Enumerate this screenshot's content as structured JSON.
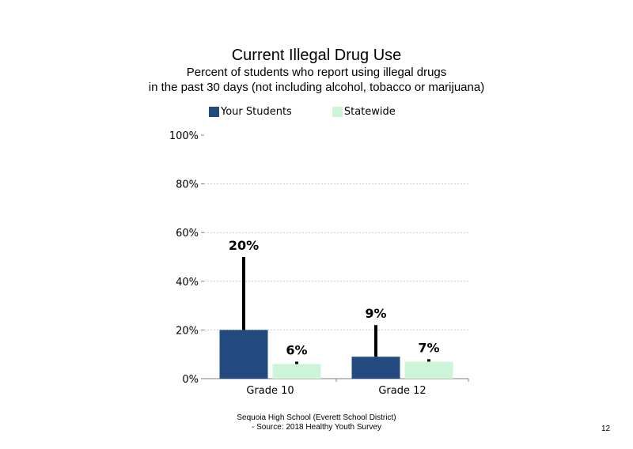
{
  "chart_data": {
    "type": "bar",
    "title": "Current Illegal Drug Use",
    "subtitle_lines": [
      "Percent of students who report using illegal drugs",
      "in the past 30 days (not including alcohol, tobacco or marijuana)"
    ],
    "categories": [
      "Grade 10",
      "Grade 12"
    ],
    "series": [
      {
        "name": "Your Students",
        "values": [
          20,
          9
        ],
        "error_high": [
          50,
          22
        ],
        "labels": [
          "20%",
          "9%"
        ],
        "color": "#234a7f"
      },
      {
        "name": "Statewide",
        "values": [
          6,
          7
        ],
        "error_high": [
          7,
          8
        ],
        "labels": [
          "6%",
          "7%"
        ],
        "color": "#ccf5d8"
      }
    ],
    "ylim": [
      0,
      100
    ],
    "yticks": [
      0,
      20,
      40,
      60,
      80,
      100
    ],
    "ytick_labels": [
      "0%",
      "20%",
      "40%",
      "60%",
      "80%",
      "100%"
    ],
    "xlabel": "",
    "ylabel": "",
    "grid": true,
    "legend_position": "top"
  },
  "footer": {
    "line1": "Sequoia High School (Everett School District)",
    "line2": "- Source: 2018 Healthy Youth Survey"
  },
  "page_number": "12"
}
